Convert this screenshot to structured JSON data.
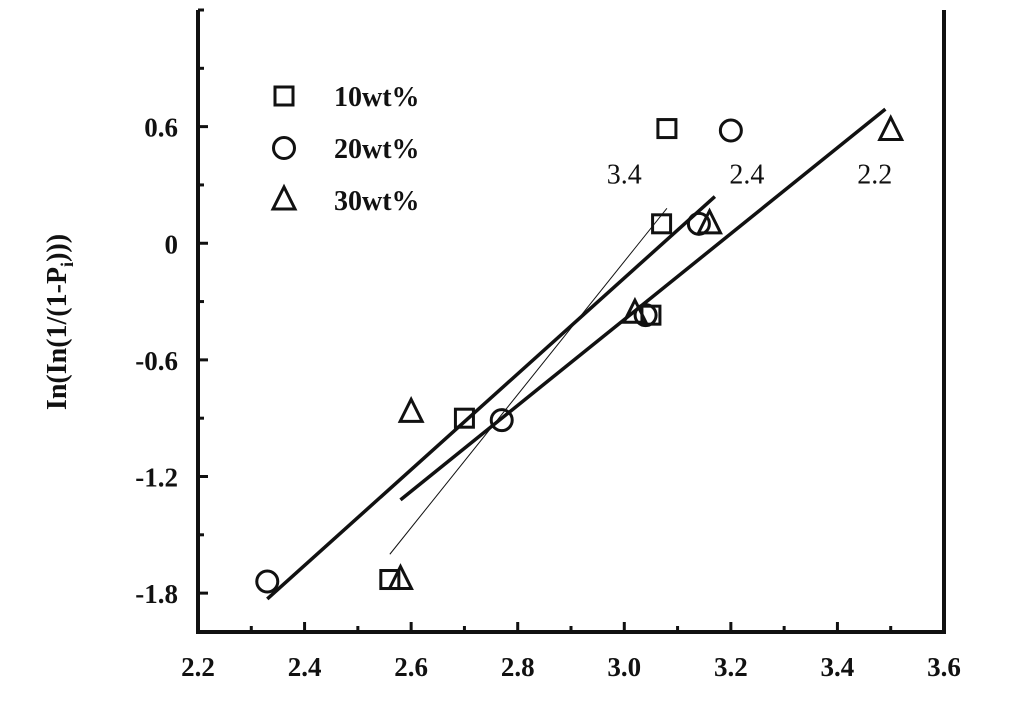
{
  "chart_data": {
    "type": "scatter",
    "title": "",
    "xlabel": "",
    "ylabel": "In(In(1/(1-P",
    "ylabel_sub": "i",
    "ylabel_tail": ")))",
    "xlim": [
      2.2,
      3.6
    ],
    "ylim": [
      -2.0,
      1.2
    ],
    "xticks": [
      2.2,
      2.4,
      2.6,
      2.8,
      3.0,
      3.2,
      3.4,
      3.6
    ],
    "xtick_labels": [
      "2.2",
      "2.4",
      "2.6",
      "2.8",
      "3.0",
      "3.2",
      "3.4",
      "3.6"
    ],
    "yticks": [
      -1.8,
      -1.2,
      -0.6,
      0,
      0.6
    ],
    "ytick_labels": [
      "-1.8",
      "-1.2",
      "-0.6",
      "0",
      "0.6"
    ],
    "grid": false,
    "legend_position": "top-left",
    "series": [
      {
        "name": "10wt%",
        "marker": "square",
        "x": [
          2.56,
          2.7,
          3.05,
          3.07,
          3.08
        ],
        "y": [
          -1.73,
          -0.9,
          -0.37,
          0.1,
          0.59
        ]
      },
      {
        "name": "20wt%",
        "marker": "circle",
        "x": [
          2.33,
          2.77,
          3.04,
          3.14,
          3.2
        ],
        "y": [
          -1.74,
          -0.91,
          -0.37,
          0.1,
          0.58
        ]
      },
      {
        "name": "30wt%",
        "marker": "triangle",
        "x": [
          2.58,
          2.6,
          3.02,
          3.16,
          3.5
        ],
        "y": [
          -1.73,
          -0.87,
          -0.36,
          0.1,
          0.58
        ]
      }
    ],
    "fit_lines": [
      {
        "label": "3.4",
        "x": [
          2.56,
          3.08
        ],
        "y": [
          -1.6,
          0.18
        ],
        "width": 1
      },
      {
        "label": "2.4",
        "x": [
          2.33,
          3.17
        ],
        "y": [
          -1.83,
          0.24
        ],
        "width": 3.5
      },
      {
        "label": "2.2",
        "x": [
          2.58,
          3.49
        ],
        "y": [
          -1.32,
          0.69
        ],
        "width": 3.5
      }
    ],
    "annotations": [
      {
        "text": "3.4",
        "x": 3.0,
        "y": 0.36
      },
      {
        "text": "2.4",
        "x": 3.23,
        "y": 0.36
      },
      {
        "text": "2.2",
        "x": 3.47,
        "y": 0.36
      }
    ],
    "colors": {
      "ink": "#111111",
      "background": "#ffffff"
    }
  }
}
